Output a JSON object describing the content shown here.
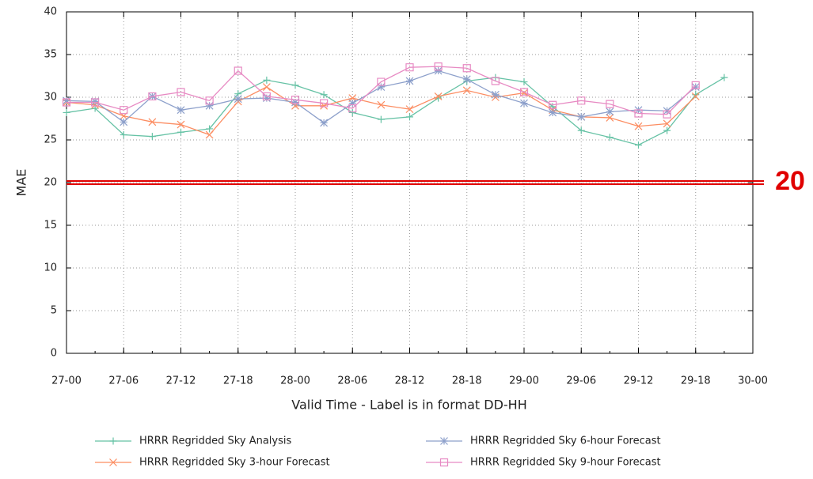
{
  "chart_data": {
    "type": "line",
    "x_label": "Valid Time - Label is in format DD-HH",
    "y_label": "MAE",
    "x": [
      "27-00",
      null,
      "27-06",
      null,
      "27-12",
      null,
      "27-18",
      null,
      "28-00",
      null,
      "28-06",
      null,
      "28-12",
      null,
      "28-18",
      null,
      "29-00",
      null,
      "29-06",
      null,
      "29-12",
      null,
      "29-18",
      null,
      "30-00"
    ],
    "ylim": [
      0,
      40
    ],
    "yticks": [
      0,
      5,
      10,
      15,
      20,
      25,
      30,
      35,
      40
    ],
    "grid": true,
    "legend": "bottom",
    "threshold": 20,
    "threshold_color": "#e00000",
    "series": [
      {
        "name": "HRRR Regridded Sky Analysis",
        "color": "#66c2a5",
        "marker": "plus",
        "values": [
          28.2,
          28.7,
          25.6,
          25.4,
          25.9,
          26.3,
          30.4,
          32.0,
          31.4,
          30.3,
          28.2,
          27.4,
          27.7,
          29.9,
          31.9,
          32.3,
          31.8,
          28.9,
          26.1,
          25.3,
          24.4,
          26.1,
          30.3,
          32.3,
          null
        ]
      },
      {
        "name": "HRRR Regridded Sky 3-hour Forecast",
        "color": "#fc8d62",
        "marker": "x",
        "values": [
          29.4,
          29.1,
          27.8,
          27.1,
          26.8,
          25.6,
          29.5,
          31.2,
          29.0,
          29.0,
          29.9,
          29.1,
          28.6,
          30.1,
          30.8,
          30.0,
          30.5,
          28.5,
          27.7,
          27.6,
          26.6,
          26.9,
          30.1,
          null,
          null
        ]
      },
      {
        "name": "HRRR Regridded Sky 6-hour Forecast",
        "color": "#8da0cb",
        "marker": "star",
        "values": [
          29.6,
          29.5,
          27.1,
          30.1,
          28.5,
          29.0,
          29.8,
          29.9,
          29.4,
          27.0,
          29.3,
          31.2,
          31.9,
          33.1,
          32.1,
          30.3,
          29.3,
          28.2,
          27.7,
          28.3,
          28.5,
          28.4,
          31.2,
          null,
          null
        ]
      },
      {
        "name": "HRRR Regridded Sky 9-hour Forecast",
        "color": "#e78ac3",
        "marker": "square",
        "values": [
          29.4,
          29.4,
          28.5,
          30.1,
          30.6,
          29.6,
          33.1,
          30.1,
          29.7,
          29.3,
          28.7,
          31.8,
          33.5,
          33.6,
          33.4,
          31.9,
          30.6,
          29.1,
          29.6,
          29.2,
          28.1,
          28.0,
          31.4,
          null,
          null
        ]
      }
    ]
  }
}
